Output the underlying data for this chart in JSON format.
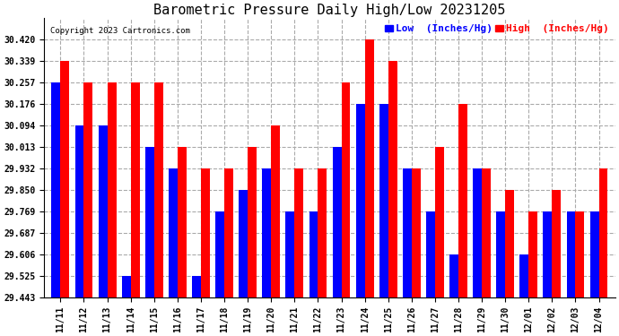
{
  "title": "Barometric Pressure Daily High/Low 20231205",
  "copyright": "Copyright 2023 Cartronics.com",
  "legend_low": "Low  (Inches/Hg)",
  "legend_high": "High  (Inches/Hg)",
  "low_color": "blue",
  "high_color": "red",
  "background_color": "#ffffff",
  "grid_color": "#aaaaaa",
  "ylim_min": 29.443,
  "ylim_max": 30.501,
  "yticks": [
    29.443,
    29.525,
    29.606,
    29.687,
    29.769,
    29.85,
    29.932,
    30.013,
    30.094,
    30.176,
    30.257,
    30.339,
    30.42
  ],
  "dates": [
    "11/11",
    "11/12",
    "11/13",
    "11/14",
    "11/15",
    "11/16",
    "11/17",
    "11/18",
    "11/19",
    "11/20",
    "11/21",
    "11/22",
    "11/23",
    "11/24",
    "11/25",
    "11/26",
    "11/27",
    "11/28",
    "11/29",
    "11/30",
    "12/01",
    "12/02",
    "12/03",
    "12/04"
  ],
  "highs": [
    30.339,
    30.257,
    30.257,
    30.257,
    30.257,
    30.013,
    29.932,
    29.932,
    30.013,
    30.094,
    29.932,
    29.932,
    30.257,
    30.42,
    30.339,
    29.932,
    30.013,
    30.176,
    29.932,
    29.85,
    29.769,
    29.85,
    29.769,
    29.932
  ],
  "lows": [
    30.257,
    30.094,
    30.094,
    29.525,
    30.013,
    29.932,
    29.525,
    29.769,
    29.85,
    29.932,
    29.769,
    29.769,
    30.013,
    30.176,
    30.176,
    29.932,
    29.769,
    29.606,
    29.932,
    29.769,
    29.606,
    29.769,
    29.769,
    29.769
  ],
  "title_fontsize": 11,
  "tick_fontsize": 7,
  "legend_fontsize": 8,
  "bar_width": 0.38
}
